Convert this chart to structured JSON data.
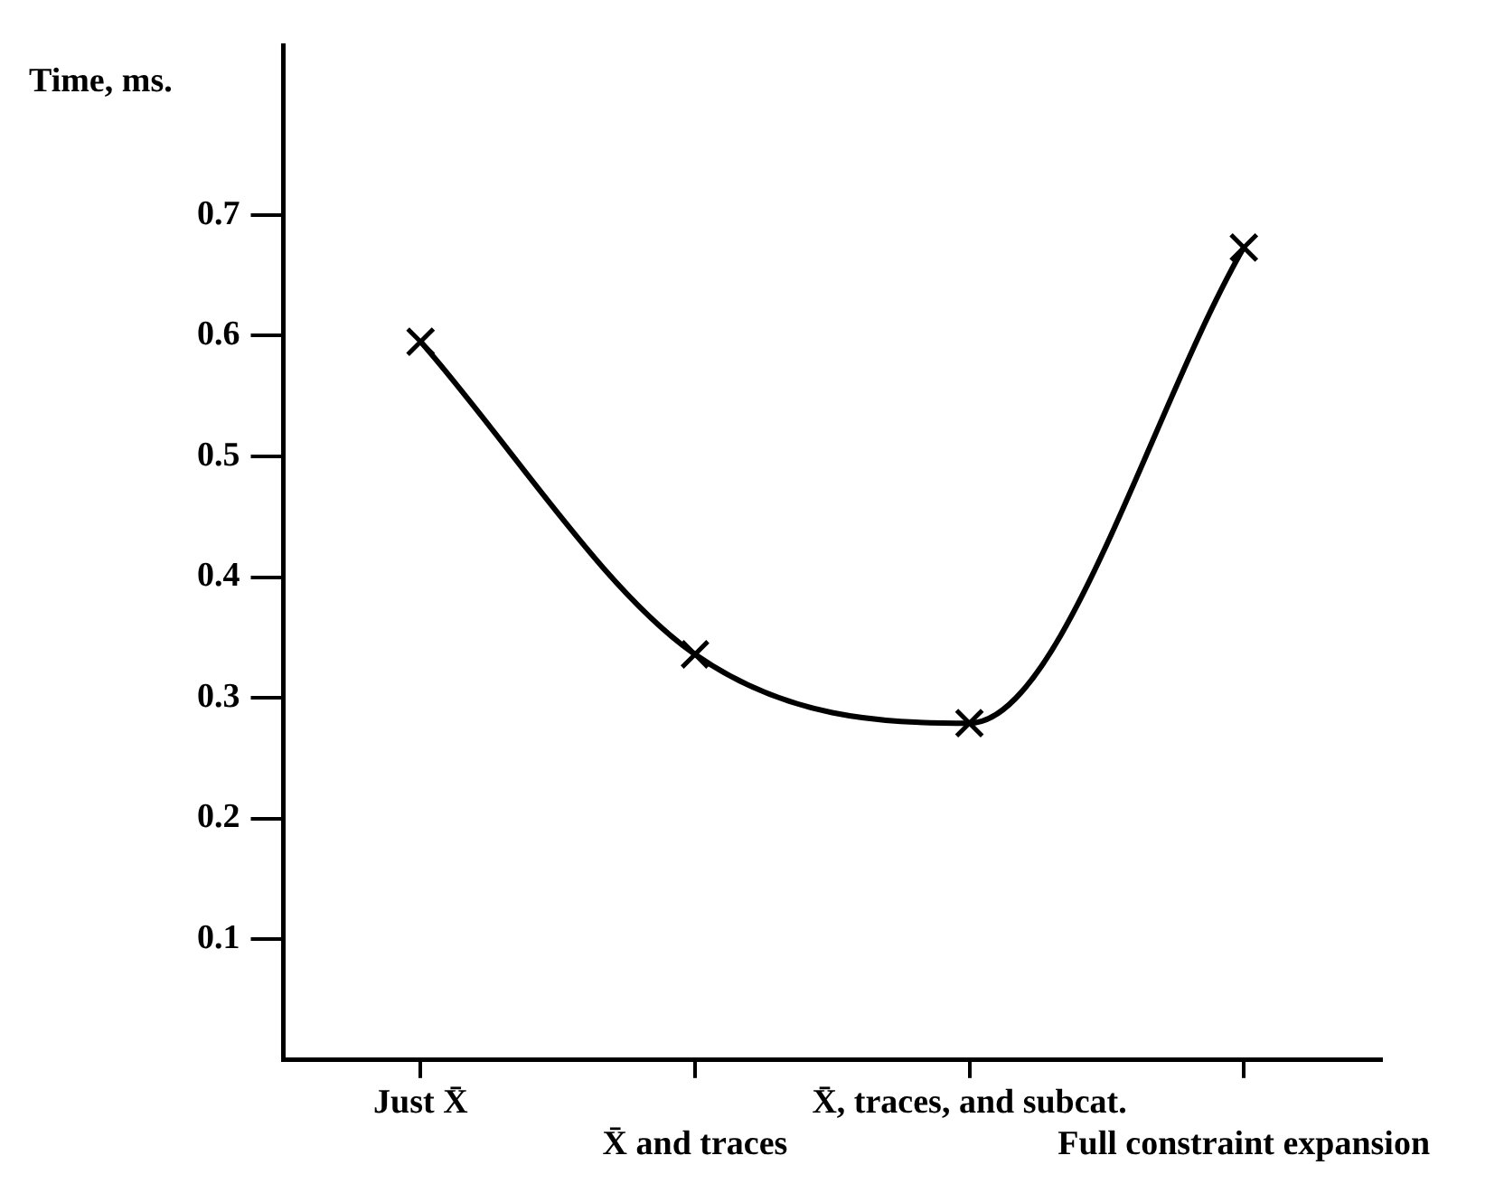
{
  "chart_data": {
    "type": "line",
    "ylabel": "Time, ms.",
    "categories": [
      "Just X̄",
      "X̄ and traces",
      "X̄, traces, and subcat.",
      "Full constraint expansion"
    ],
    "series": [
      {
        "color": "#000000",
        "values": [
          0.595,
          0.336,
          0.279,
          0.673
        ]
      }
    ],
    "ylim": [
      0,
      0.84
    ],
    "yticks": [
      0.1,
      0.2,
      0.3,
      0.4,
      0.5,
      0.6,
      0.7
    ],
    "grid": false,
    "legend": false,
    "marker": "cross",
    "line_style": "solid"
  }
}
